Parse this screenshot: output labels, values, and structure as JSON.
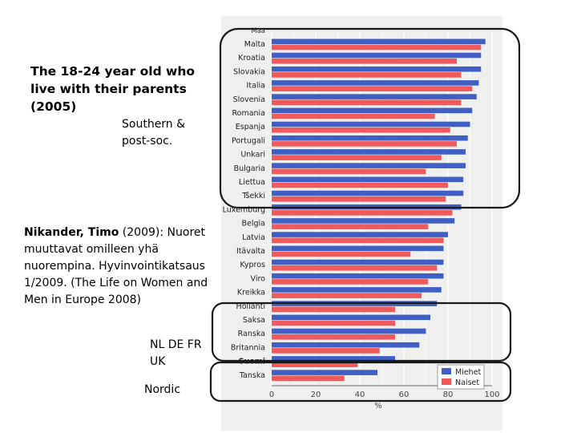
{
  "annotations": {
    "title": "The 18-24 year old who live with their parents (2005)",
    "southern_label": "Southern & post-soc.",
    "citation_author": "Nikander, Timo",
    "citation_rest": " (2009): Nuoret muuttavat omilleen yhä nuorempina. Hyvinvointikatsaus 1/2009. (The Life on Women and Men in Europe 2008)",
    "group_nl_label": "NL DE FR UK",
    "nordic_label": "Nordic"
  },
  "colors": {
    "men": "#3f5fc4",
    "women": "#f05a5a",
    "panel": "#eff0ee",
    "highlight_box": "#1a1a1a"
  },
  "chart_data": {
    "type": "bar",
    "orientation": "horizontal",
    "header_label": "Maa",
    "categories": [
      "Malta",
      "Kroatia",
      "Slovakia",
      "Italia",
      "Slovenia",
      "Romania",
      "Espanja",
      "Portugali",
      "Unkari",
      "Bulgaria",
      "Liettua",
      "Tšekki",
      "Luxemburg",
      "Belgia",
      "Latvia",
      "Itävalta",
      "Kypros",
      "Viro",
      "Kreikka",
      "Hollanti",
      "Saksa",
      "Ranska",
      "Britannia",
      "Suomi",
      "Tanska"
    ],
    "bold_categories": [
      "Suomi"
    ],
    "series": [
      {
        "name": "Miehet",
        "values": [
          97,
          95,
          95,
          94,
          93,
          91,
          90,
          89,
          88,
          88,
          87,
          87,
          86,
          83,
          80,
          78,
          78,
          78,
          77,
          75,
          72,
          70,
          67,
          56,
          48
        ]
      },
      {
        "name": "Naiset",
        "values": [
          95,
          84,
          86,
          91,
          86,
          74,
          81,
          84,
          77,
          70,
          80,
          79,
          82,
          71,
          78,
          63,
          75,
          71,
          68,
          56,
          56,
          56,
          49,
          39,
          33
        ]
      }
    ],
    "xlim": [
      0,
      100
    ],
    "xticks": [
      0,
      20,
      40,
      60,
      80,
      100
    ],
    "xlabel": "%",
    "legend": {
      "position": "bottom-right"
    },
    "grid": true
  }
}
